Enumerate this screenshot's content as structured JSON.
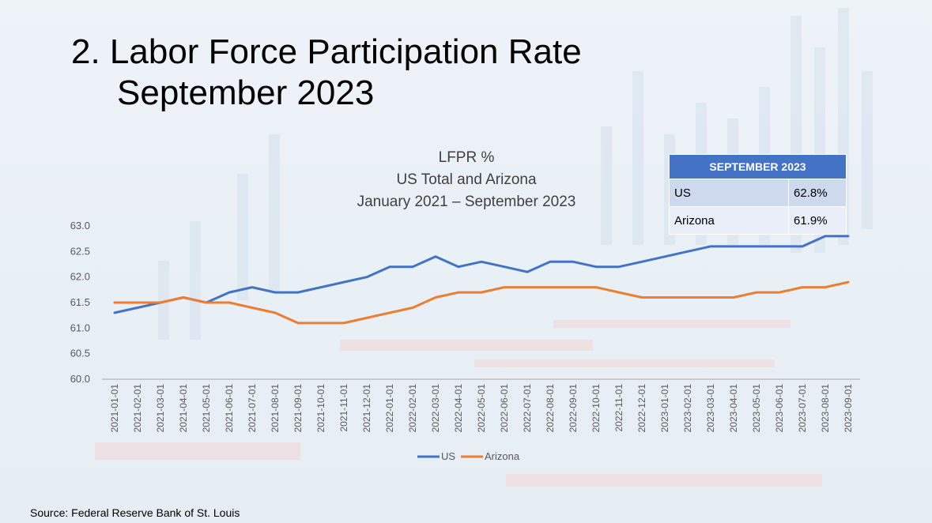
{
  "slide": {
    "title_line1": "2. Labor Force Participation Rate",
    "title_line2": "September 2023",
    "source": "Source: Federal Reserve Bank of St. Louis"
  },
  "table": {
    "header": "SEPTEMBER 2023",
    "rows": [
      {
        "label": "US",
        "value": "62.8%"
      },
      {
        "label": "Arizona",
        "value": "61.9%"
      }
    ]
  },
  "chart_data": {
    "type": "line",
    "title": [
      "LFPR %",
      "US Total and Arizona",
      "January 2021 – September 2023"
    ],
    "xlabel": "",
    "ylabel": "",
    "ylim": [
      60.0,
      63.0
    ],
    "yticks": [
      "60.0",
      "60.5",
      "61.0",
      "61.5",
      "62.0",
      "62.5",
      "63.0"
    ],
    "grid": false,
    "legend": "bottom",
    "x": [
      "2021-01-01",
      "2021-02-01",
      "2021-03-01",
      "2021-04-01",
      "2021-05-01",
      "2021-06-01",
      "2021-07-01",
      "2021-08-01",
      "2021-09-01",
      "2021-10-01",
      "2021-11-01",
      "2021-12-01",
      "2022-01-01",
      "2022-02-01",
      "2022-03-01",
      "2022-04-01",
      "2022-05-01",
      "2022-06-01",
      "2022-07-01",
      "2022-08-01",
      "2022-09-01",
      "2022-10-01",
      "2022-11-01",
      "2022-12-01",
      "2023-01-01",
      "2023-02-01",
      "2023-03-01",
      "2023-04-01",
      "2023-05-01",
      "2023-06-01",
      "2023-07-01",
      "2023-08-01",
      "2023-09-01"
    ],
    "series": [
      {
        "name": "US",
        "color": "#4472c4",
        "values": [
          61.3,
          61.4,
          61.5,
          61.6,
          61.5,
          61.7,
          61.8,
          61.7,
          61.7,
          61.8,
          61.9,
          62.0,
          62.2,
          62.2,
          62.4,
          62.2,
          62.3,
          62.2,
          62.1,
          62.3,
          62.3,
          62.2,
          62.2,
          62.3,
          62.4,
          62.5,
          62.6,
          62.6,
          62.6,
          62.6,
          62.6,
          62.8,
          62.8
        ]
      },
      {
        "name": "Arizona",
        "color": "#ed7d31",
        "values": [
          61.5,
          61.5,
          61.5,
          61.6,
          61.5,
          61.5,
          61.4,
          61.3,
          61.1,
          61.1,
          61.1,
          61.2,
          61.3,
          61.4,
          61.6,
          61.7,
          61.7,
          61.8,
          61.8,
          61.8,
          61.8,
          61.8,
          61.7,
          61.6,
          61.6,
          61.6,
          61.6,
          61.6,
          61.7,
          61.7,
          61.8,
          61.8,
          61.9
        ]
      }
    ]
  }
}
